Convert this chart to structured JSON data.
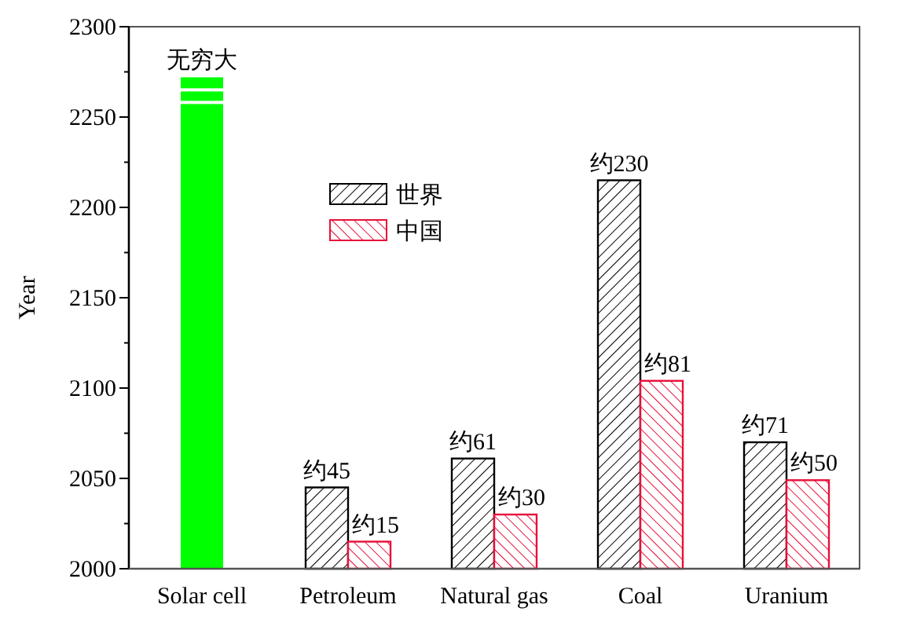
{
  "chart_data": {
    "type": "bar",
    "ylabel": "Year",
    "categories": [
      "Solar cell",
      "Petroleum",
      "Natural gas",
      "Coal",
      "Uranium"
    ],
    "series": [
      {
        "color": "#00ff00",
        "values": [
          2272,
          null,
          null,
          null,
          null
        ],
        "value_labels": [
          "无穷大",
          null,
          null,
          null,
          null
        ]
      },
      {
        "name": "世界",
        "color": "#000000",
        "values": [
          null,
          2045,
          2061,
          2215,
          2070
        ],
        "value_labels": [
          null,
          "约45",
          "约61",
          "约230",
          "约71"
        ]
      },
      {
        "name": "中国",
        "color": "#e8103a",
        "values": [
          null,
          2015,
          2030,
          2104,
          2049
        ],
        "value_labels": [
          null,
          "约15",
          "约30",
          "约81",
          "约50"
        ]
      }
    ],
    "ylim": [
      2000,
      2300
    ],
    "yticks": [
      2000,
      {
        "value": 2025,
        "label": null
      },
      2050,
      {
        "value": 2075,
        "label": null
      },
      2100,
      {
        "value": 2125,
        "label": null
      },
      2150,
      {
        "value": 2175,
        "label": null
      },
      2200,
      {
        "value": 2225,
        "label": null
      },
      2250,
      {
        "value": 2275,
        "label": null
      },
      2300
    ],
    "grid": false,
    "legend": "top left"
  }
}
